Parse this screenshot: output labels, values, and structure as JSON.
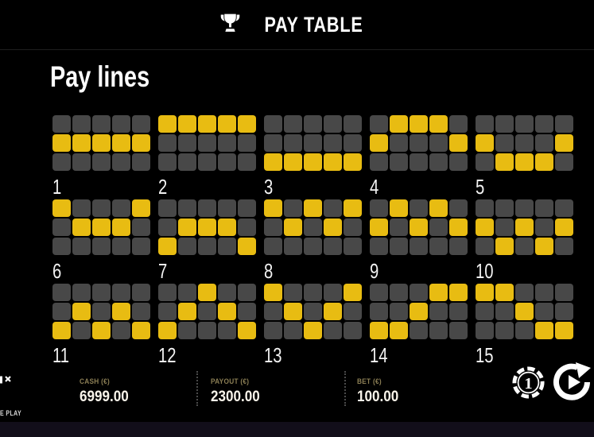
{
  "header": {
    "title": "PAY TABLE",
    "icon": "trophy-icon"
  },
  "paylines_section": {
    "title": "Pay lines",
    "grid": {
      "columns": 5,
      "rows": 3
    },
    "pattern_encoding": "row index per reel column: 0=top, 1=middle, 2=bottom",
    "lines": [
      {
        "label": "1",
        "pattern": [
          1,
          1,
          1,
          1,
          1
        ]
      },
      {
        "label": "2",
        "pattern": [
          0,
          0,
          0,
          0,
          0
        ]
      },
      {
        "label": "3",
        "pattern": [
          2,
          2,
          2,
          2,
          2
        ]
      },
      {
        "label": "4",
        "pattern": [
          1,
          0,
          0,
          0,
          1
        ]
      },
      {
        "label": "5",
        "pattern": [
          1,
          2,
          2,
          2,
          1
        ]
      },
      {
        "label": "6",
        "pattern": [
          0,
          1,
          1,
          1,
          0
        ]
      },
      {
        "label": "7",
        "pattern": [
          2,
          1,
          1,
          1,
          2
        ]
      },
      {
        "label": "8",
        "pattern": [
          0,
          1,
          0,
          1,
          0
        ]
      },
      {
        "label": "9",
        "pattern": [
          1,
          0,
          1,
          0,
          1
        ]
      },
      {
        "label": "10",
        "pattern": [
          1,
          2,
          1,
          2,
          1
        ]
      },
      {
        "label": "11",
        "pattern": [
          2,
          1,
          2,
          1,
          2
        ]
      },
      {
        "label": "12",
        "pattern": [
          2,
          1,
          0,
          1,
          2
        ]
      },
      {
        "label": "13",
        "pattern": [
          0,
          1,
          2,
          1,
          0
        ]
      },
      {
        "label": "14",
        "pattern": [
          2,
          2,
          1,
          0,
          0
        ]
      },
      {
        "label": "15",
        "pattern": [
          0,
          0,
          1,
          2,
          2
        ]
      }
    ]
  },
  "statusbar": {
    "cash": {
      "label": "CASH (€)",
      "value": "6999.00"
    },
    "payout": {
      "label": "PAYOUT (€)",
      "value": "2300.00"
    },
    "bet": {
      "label": "BET (€)",
      "value": "100.00"
    },
    "chip_value": "1",
    "free_play_text": "E PLAY",
    "icons": [
      "mute-icon",
      "chip-bet-icon",
      "spin-icon"
    ]
  },
  "colors": {
    "background": "#000000",
    "cell_on": "#e8bc12",
    "cell_off": "#484848",
    "label_gold": "#8c7f55",
    "value_text": "#f9f4ea",
    "bottom_strip": "#120e1a"
  }
}
